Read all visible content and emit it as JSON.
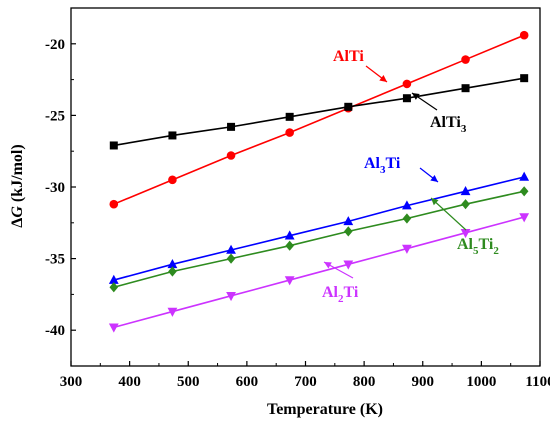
{
  "chart_data": {
    "type": "line",
    "xlabel": "Temperature (K)",
    "ylabel_parts": [
      "Δ",
      "G",
      " (kJ/mol)"
    ],
    "xlim": [
      300,
      1100
    ],
    "ylim": [
      -42.5,
      -17.5
    ],
    "xticks": [
      300,
      400,
      500,
      600,
      700,
      800,
      900,
      1000,
      1100
    ],
    "yticks": [
      -40,
      -35,
      -30,
      -25,
      -20
    ],
    "grid": false,
    "x": [
      373,
      473,
      573,
      673,
      773,
      873,
      973,
      1073
    ],
    "series": [
      {
        "name": "AlTi",
        "label_parts": [
          [
            "AlTi",
            false
          ]
        ],
        "color": "#ff0000",
        "marker": "circle",
        "values": [
          -31.2,
          -29.5,
          -27.8,
          -26.2,
          -24.5,
          -22.8,
          -21.1,
          -19.4
        ]
      },
      {
        "name": "AlTi3",
        "label_parts": [
          [
            "AlTi",
            false
          ],
          [
            "3",
            true
          ]
        ],
        "color": "#000000",
        "marker": "square",
        "values": [
          -27.1,
          -26.4,
          -25.8,
          -25.1,
          -24.4,
          -23.8,
          -23.1,
          -22.4
        ]
      },
      {
        "name": "Al3Ti",
        "label_parts": [
          [
            "Al",
            false
          ],
          [
            "3",
            true
          ],
          [
            "Ti",
            false
          ]
        ],
        "color": "#0000ff",
        "marker": "triangle-up",
        "values": [
          -36.5,
          -35.4,
          -34.4,
          -33.4,
          -32.4,
          -31.3,
          -30.3,
          -29.3
        ]
      },
      {
        "name": "Al5Ti2",
        "label_parts": [
          [
            "Al",
            false
          ],
          [
            "5",
            true
          ],
          [
            "Ti",
            false
          ],
          [
            "2",
            true
          ]
        ],
        "color": "#2e8b1f",
        "marker": "diamond",
        "values": [
          -37.0,
          -35.9,
          -35.0,
          -34.1,
          -33.1,
          -32.2,
          -31.2,
          -30.3
        ]
      },
      {
        "name": "Al2Ti",
        "label_parts": [
          [
            "Al",
            false
          ],
          [
            "2",
            true
          ],
          [
            "Ti",
            false
          ]
        ],
        "color": "#cc33ff",
        "marker": "triangle-down",
        "values": [
          -39.8,
          -38.7,
          -37.6,
          -36.5,
          -35.4,
          -34.3,
          -33.2,
          -32.1
        ]
      }
    ]
  }
}
